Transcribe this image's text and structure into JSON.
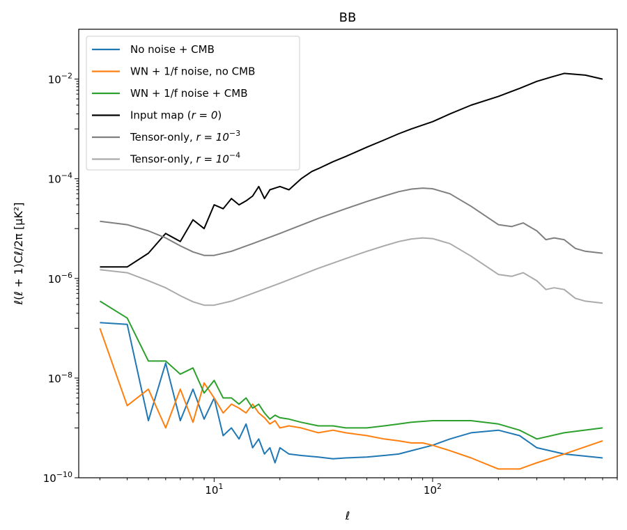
{
  "chart_data": {
    "type": "line",
    "title": "BB",
    "xlabel": "ℓ",
    "ylabel": "ℓ(ℓ + 1)Cℓ/2π [μK²]",
    "xscale": "log",
    "yscale": "log",
    "xlim": [
      2.4,
      700
    ],
    "ylim": [
      1e-10,
      0.1
    ],
    "xticks": [
      {
        "base": "10",
        "exp": "1",
        "value": 10
      },
      {
        "base": "10",
        "exp": "2",
        "value": 100
      }
    ],
    "yticks": [
      {
        "base": "10",
        "exp": "−10",
        "value": 1e-10
      },
      {
        "base": "10",
        "exp": "−8",
        "value": 1e-08
      },
      {
        "base": "10",
        "exp": "−6",
        "value": 1e-06
      },
      {
        "base": "10",
        "exp": "−4",
        "value": 0.0001
      },
      {
        "base": "10",
        "exp": "−2",
        "value": 0.01
      }
    ],
    "legend_position": "top-left",
    "series": [
      {
        "name": "No noise + CMB",
        "label_main": "No noise + CMB",
        "label_math": "",
        "label_sup": "",
        "label_suffix": "",
        "color": "#1f77b4",
        "x": [
          3,
          4,
          5,
          6,
          7,
          8,
          9,
          10,
          11,
          12,
          13,
          14,
          15,
          16,
          17,
          18,
          19,
          20,
          22,
          25,
          30,
          35,
          40,
          50,
          60,
          70,
          80,
          100,
          120,
          150,
          200,
          250,
          300,
          400,
          600
        ],
        "y": [
          1.3e-07,
          1.2e-07,
          1.4e-09,
          2e-08,
          1.4e-09,
          6e-09,
          1.5e-09,
          4e-09,
          7e-10,
          1e-09,
          6e-10,
          1.2e-09,
          4e-10,
          6e-10,
          3e-10,
          4e-10,
          2e-10,
          4e-10,
          3e-10,
          2.8e-10,
          2.6e-10,
          2.4e-10,
          2.5e-10,
          2.6e-10,
          2.8e-10,
          3e-10,
          3.5e-10,
          4.5e-10,
          6e-10,
          8e-10,
          9e-10,
          7e-10,
          4e-10,
          3e-10,
          2.5e-10
        ]
      },
      {
        "name": "WN + 1/f noise, no CMB",
        "label_main": "WN + 1/f noise, no CMB",
        "label_math": "",
        "label_sup": "",
        "label_suffix": "",
        "color": "#ff7f0e",
        "x": [
          3,
          4,
          5,
          6,
          7,
          8,
          9,
          10,
          11,
          12,
          13,
          14,
          15,
          16,
          17,
          18,
          19,
          20,
          22,
          25,
          30,
          35,
          40,
          50,
          60,
          70,
          80,
          90,
          100,
          120,
          150,
          200,
          250,
          300,
          400,
          600
        ],
        "y": [
          1e-07,
          2.8e-09,
          6e-09,
          1e-09,
          6e-09,
          1.3e-09,
          8e-09,
          4e-09,
          2e-09,
          3e-09,
          2.5e-09,
          2e-09,
          3e-09,
          2e-09,
          1.6e-09,
          1.2e-09,
          1.4e-09,
          1e-09,
          1.1e-09,
          1e-09,
          8e-10,
          9e-10,
          8e-10,
          7e-10,
          6e-10,
          5.5e-10,
          5e-10,
          5e-10,
          4.5e-10,
          3.5e-10,
          2.5e-10,
          1.5e-10,
          1.5e-10,
          2e-10,
          3e-10,
          5.5e-10
        ]
      },
      {
        "name": "WN + 1/f noise + CMB",
        "label_main": "WN + 1/f noise + CMB",
        "label_math": "",
        "label_sup": "",
        "label_suffix": "",
        "color": "#2ca02c",
        "x": [
          3,
          4,
          5,
          6,
          7,
          8,
          9,
          10,
          11,
          12,
          13,
          14,
          15,
          16,
          17,
          18,
          19,
          20,
          22,
          25,
          30,
          35,
          40,
          50,
          60,
          70,
          80,
          100,
          120,
          150,
          200,
          250,
          300,
          400,
          600
        ],
        "y": [
          3.5e-07,
          1.6e-07,
          2.2e-08,
          2.2e-08,
          1.2e-08,
          1.6e-08,
          5e-09,
          9e-09,
          4e-09,
          4e-09,
          3e-09,
          4e-09,
          2.5e-09,
          3e-09,
          2e-09,
          1.5e-09,
          1.8e-09,
          1.6e-09,
          1.5e-09,
          1.3e-09,
          1.1e-09,
          1.1e-09,
          1e-09,
          1e-09,
          1.1e-09,
          1.2e-09,
          1.3e-09,
          1.4e-09,
          1.4e-09,
          1.4e-09,
          1.2e-09,
          9e-10,
          6e-10,
          8e-10,
          1e-09
        ]
      },
      {
        "name": "Input map (r = 0)",
        "label_main": "Input map (",
        "label_math": "r = 0",
        "label_sup": "",
        "label_suffix": ")",
        "color": "#000000",
        "x": [
          3,
          4,
          5,
          6,
          7,
          8,
          9,
          10,
          11,
          12,
          13,
          14,
          15,
          16,
          17,
          18,
          19,
          20,
          22,
          25,
          28,
          30,
          35,
          40,
          50,
          60,
          70,
          80,
          100,
          120,
          150,
          200,
          250,
          300,
          350,
          400,
          500,
          600
        ],
        "y": [
          1.7e-06,
          1.7e-06,
          3.2e-06,
          8e-06,
          5.5e-06,
          1.5e-05,
          1e-05,
          3e-05,
          2.5e-05,
          4e-05,
          3e-05,
          3.6e-05,
          4.5e-05,
          7e-05,
          4e-05,
          6e-05,
          6.5e-05,
          7e-05,
          6e-05,
          0.0001,
          0.00014,
          0.00016,
          0.00022,
          0.00028,
          0.00043,
          0.0006,
          0.0008,
          0.001,
          0.0014,
          0.002,
          0.003,
          0.0045,
          0.0065,
          0.009,
          0.011,
          0.013,
          0.012,
          0.01
        ]
      },
      {
        "name": "Tensor-only, r = 10^-3",
        "label_main": "Tensor-only, ",
        "label_math": "r = 10",
        "label_sup": "−3",
        "label_suffix": "",
        "color": "#7f7f7f",
        "x": [
          3,
          4,
          5,
          6,
          7,
          8,
          9,
          10,
          12,
          15,
          20,
          30,
          40,
          50,
          60,
          70,
          80,
          90,
          100,
          120,
          150,
          200,
          230,
          260,
          300,
          330,
          360,
          400,
          450,
          500,
          600
        ],
        "y": [
          1.4e-05,
          1.2e-05,
          9e-06,
          6.5e-06,
          4.5e-06,
          3.4e-06,
          2.9e-06,
          2.9e-06,
          3.5e-06,
          5e-06,
          8e-06,
          1.6e-05,
          2.5e-05,
          3.5e-05,
          4.5e-05,
          5.5e-05,
          6.2e-05,
          6.5e-05,
          6.3e-05,
          5e-05,
          2.8e-05,
          1.2e-05,
          1.1e-05,
          1.3e-05,
          9e-06,
          6e-06,
          6.5e-06,
          6e-06,
          4e-06,
          3.5e-06,
          3.2e-06
        ]
      },
      {
        "name": "Tensor-only, r = 10^-4",
        "label_main": "Tensor-only, ",
        "label_math": "r = 10",
        "label_sup": "−4",
        "label_suffix": "",
        "color": "#aaaaaa",
        "x": [
          3,
          4,
          5,
          6,
          7,
          8,
          9,
          10,
          12,
          15,
          20,
          30,
          40,
          50,
          60,
          70,
          80,
          90,
          100,
          120,
          150,
          200,
          230,
          260,
          300,
          330,
          360,
          400,
          450,
          500,
          600
        ],
        "y": [
          1.5e-06,
          1.3e-06,
          9e-07,
          6.5e-07,
          4.5e-07,
          3.4e-07,
          2.9e-07,
          2.9e-07,
          3.5e-07,
          5e-07,
          8e-07,
          1.6e-06,
          2.5e-06,
          3.5e-06,
          4.5e-06,
          5.5e-06,
          6.2e-06,
          6.5e-06,
          6.3e-06,
          5e-06,
          2.8e-06,
          1.2e-06,
          1.1e-06,
          1.3e-06,
          9e-07,
          6e-07,
          6.5e-07,
          6e-07,
          4e-07,
          3.5e-07,
          3.2e-07
        ]
      }
    ]
  }
}
